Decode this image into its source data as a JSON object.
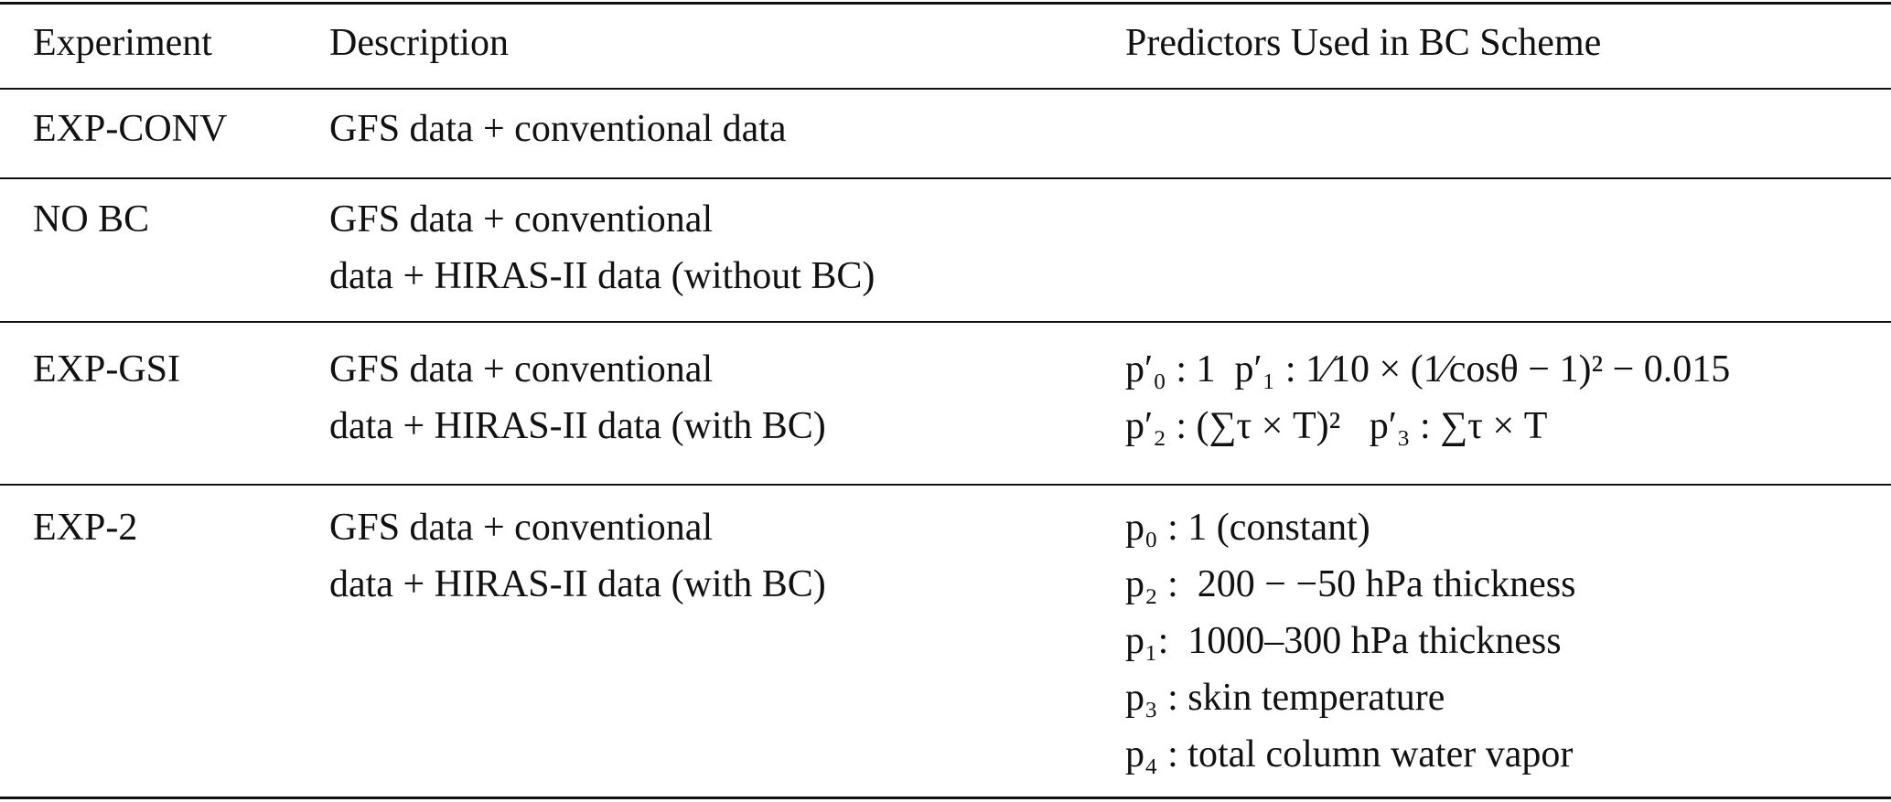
{
  "table": {
    "header": [
      "Experiment",
      "Description",
      "Predictors Used in BC Scheme"
    ],
    "rows": [
      {
        "experiment": "EXP-CONV",
        "description": [
          "GFS data + conventional data"
        ],
        "predictors": []
      },
      {
        "experiment": "NO BC",
        "description": [
          "GFS data + conventional",
          "data + HIRAS-II data (without BC)"
        ],
        "predictors": []
      },
      {
        "experiment": "EXP-GSI",
        "description": [
          "GFS data + conventional",
          "data + HIRAS-II data (with BC)"
        ],
        "predictors": [
          "p′₀ : 1  p′₁ : 1⁄10 × (1⁄cosθ − 1)² − 0.015",
          "p′₂ : (∑τ × T)²   p′₃ : ∑τ × T"
        ]
      },
      {
        "experiment": "EXP-2",
        "description": [
          "GFS data + conventional",
          "data + HIRAS-II data (with BC)"
        ],
        "predictors": [
          "p₀ : 1 (constant)",
          "p₂ :  200 − −50 hPa thickness",
          "p₁:  1000–300 hPa thickness",
          "p₃ : skin temperature",
          "p₄ : total column water vapor"
        ]
      }
    ]
  }
}
